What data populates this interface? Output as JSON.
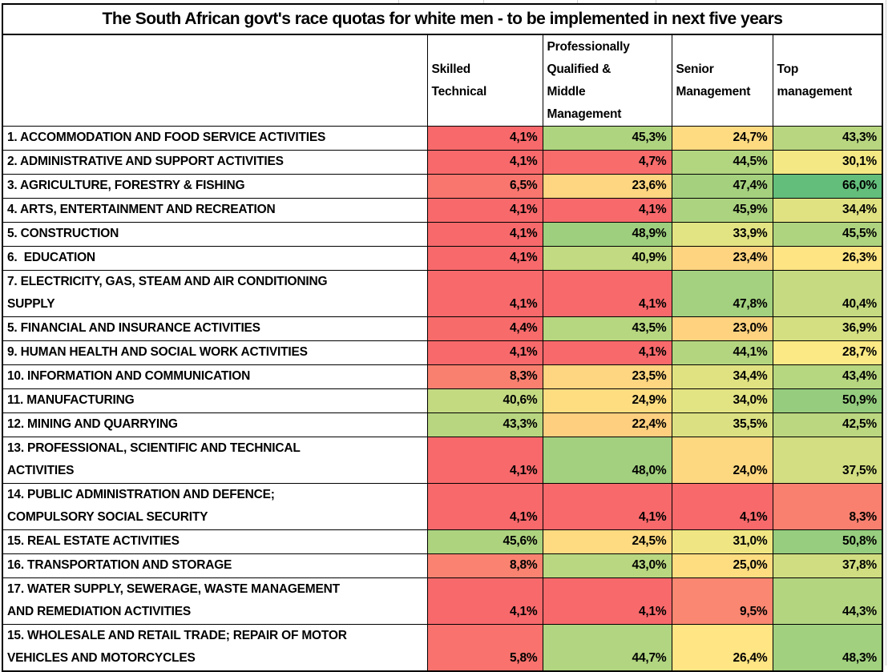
{
  "page": {
    "background_color": "#FFFFFF",
    "text_color": "#000000",
    "grid_border_color": "#000000",
    "faint_gridline_color": "#CFCFCF"
  },
  "chart_data": {
    "type": "table",
    "title": "The South African govt's race quotas for white men - to be implemented in next five years",
    "value_unit": "%",
    "number_format": "comma-decimal-percent",
    "columns": [
      "Skilled Technical",
      "Professionally Qualified & Middle Management",
      "Senior Management",
      "Top management"
    ],
    "columns_display": [
      "Skilled\nTechnical",
      "Professionally\nQualified &\nMiddle\nManagement",
      "Senior\nManagement",
      "Top\nmanagement"
    ],
    "rows": [
      {
        "label": "1. ACCOMMODATION AND FOOD SERVICE ACTIVITIES",
        "values": [
          4.1,
          45.3,
          24.7,
          43.3
        ]
      },
      {
        "label": "2. ADMINISTRATIVE AND SUPPORT ACTIVITIES",
        "values": [
          4.1,
          4.7,
          44.5,
          30.1
        ]
      },
      {
        "label": "3. AGRICULTURE, FORESTRY & FISHING",
        "values": [
          6.5,
          23.6,
          47.4,
          66.0
        ]
      },
      {
        "label": "4. ARTS, ENTERTAINMENT AND RECREATION",
        "values": [
          4.1,
          4.1,
          45.9,
          34.4
        ]
      },
      {
        "label": "5. CONSTRUCTION",
        "values": [
          4.1,
          48.9,
          33.9,
          45.5
        ]
      },
      {
        "label": "6.  EDUCATION",
        "values": [
          4.1,
          40.9,
          23.4,
          26.3
        ]
      },
      {
        "label": "7. ELECTRICITY, GAS, STEAM AND AIR CONDITIONING\nSUPPLY",
        "values": [
          4.1,
          4.1,
          47.8,
          40.4
        ]
      },
      {
        "label": "5. FINANCIAL AND INSURANCE ACTIVITIES",
        "values": [
          4.4,
          43.5,
          23.0,
          36.9
        ]
      },
      {
        "label": "9. HUMAN HEALTH AND SOCIAL WORK ACTIVITIES",
        "values": [
          4.1,
          4.1,
          44.1,
          28.7
        ]
      },
      {
        "label": "10. INFORMATION AND COMMUNICATION",
        "values": [
          8.3,
          23.5,
          34.4,
          43.4
        ]
      },
      {
        "label": "11. MANUFACTURING",
        "values": [
          40.6,
          24.9,
          34.0,
          50.9
        ]
      },
      {
        "label": "12. MINING AND QUARRYING",
        "values": [
          43.3,
          22.4,
          35.5,
          42.5
        ]
      },
      {
        "label": "13. PROFESSIONAL, SCIENTIFIC AND TECHNICAL\nACTIVITIES",
        "values": [
          4.1,
          48.0,
          24.0,
          37.5
        ]
      },
      {
        "label": "14. PUBLIC ADMINISTRATION AND DEFENCE;\nCOMPULSORY SOCIAL SECURITY",
        "values": [
          4.1,
          4.1,
          4.1,
          8.3
        ]
      },
      {
        "label": "15. REAL ESTATE ACTIVITIES",
        "values": [
          45.6,
          24.5,
          31.0,
          50.8
        ]
      },
      {
        "label": "16. TRANSPORTATION AND STORAGE",
        "values": [
          8.8,
          43.0,
          25.0,
          37.8
        ]
      },
      {
        "label": "17. WATER SUPPLY, SEWERAGE, WASTE MANAGEMENT\nAND REMEDIATION ACTIVITIES",
        "values": [
          4.1,
          4.1,
          9.5,
          44.3
        ]
      },
      {
        "label": "15. WHOLESALE AND RETAIL TRADE; REPAIR OF MOTOR\nVEHICLES AND MOTORCYCLES",
        "values": [
          5.8,
          44.7,
          26.4,
          48.3
        ]
      }
    ],
    "color_scale": {
      "type": "3-color-heatmap",
      "anchors": [
        {
          "value": 4.1,
          "color": "#F8696B"
        },
        {
          "value": 27.5,
          "color": "#FFEB84"
        },
        {
          "value": 62.0,
          "color": "#63BE7B"
        }
      ],
      "clamp": true
    },
    "layout_hints": {
      "value_alignment": "right",
      "label_alignment": "left",
      "grid": "black solid borders",
      "legend": "none"
    }
  }
}
